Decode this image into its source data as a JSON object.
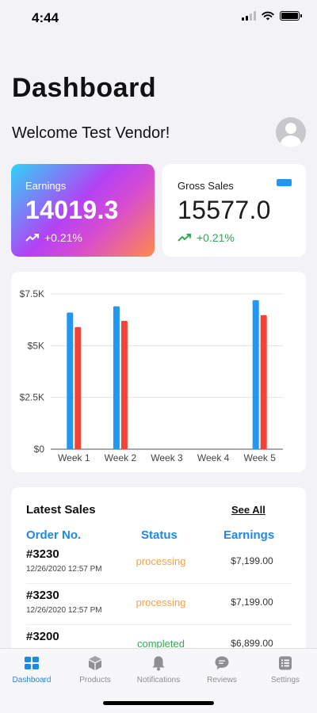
{
  "status_bar": {
    "time": "4:44"
  },
  "page": {
    "title": "Dashboard",
    "welcome": "Welcome Test Vendor!"
  },
  "earnings_card": {
    "label": "Earnings",
    "value": "14019.3",
    "trend": "+0.21%"
  },
  "gross_card": {
    "label": "Gross Sales",
    "value": "15577.0",
    "trend": "+0.21%"
  },
  "colors": {
    "blue": "#2196f3",
    "red": "#f44336",
    "green": "#34a853",
    "orange": "#f5a142",
    "accent": "#1e88e5"
  },
  "chart_data": {
    "type": "bar",
    "categories": [
      "Week 1",
      "Week 2",
      "Week 3",
      "Week 4",
      "Week 5"
    ],
    "series": [
      {
        "values": [
          6600,
          6900,
          0,
          0,
          7199
        ],
        "color": "#2196f3"
      },
      {
        "values": [
          5900,
          6200,
          0,
          0,
          6478
        ],
        "color": "#f44336"
      }
    ],
    "ylim": [
      0,
      7500
    ],
    "yticks": [
      0,
      2500,
      5000,
      7500
    ],
    "ytick_labels": [
      "$0",
      "$2.5K",
      "$5K",
      "$7.5K"
    ],
    "grid": true
  },
  "latest_sales": {
    "title": "Latest Sales",
    "see_all": "See All",
    "columns": [
      "Order No.",
      "Status",
      "Earnings"
    ],
    "rows": [
      {
        "order": "#3230",
        "date": "12/26/2020 12:57 PM",
        "status": "processing",
        "amount": "$7,199.00"
      },
      {
        "order": "#3230",
        "date": "12/26/2020 12:57 PM",
        "status": "processing",
        "amount": "$7,199.00"
      },
      {
        "order": "#3200",
        "date": "",
        "status": "completed",
        "amount": "$6,899.00"
      }
    ]
  },
  "tabs": [
    {
      "label": "Dashboard",
      "icon": "grid-icon",
      "active": true
    },
    {
      "label": "Products",
      "icon": "box-icon",
      "active": false
    },
    {
      "label": "Notifications",
      "icon": "bell-icon",
      "active": false
    },
    {
      "label": "Reviews",
      "icon": "chat-bubble-icon",
      "active": false
    },
    {
      "label": "Settings",
      "icon": "list-icon",
      "active": false
    }
  ]
}
